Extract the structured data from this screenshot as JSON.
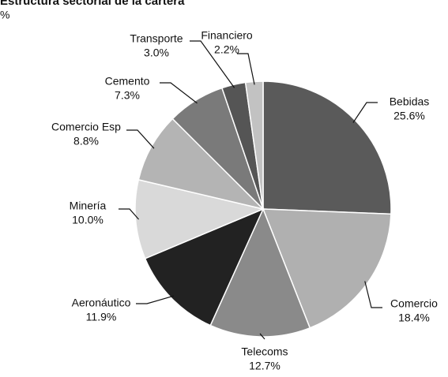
{
  "chart_data": {
    "type": "pie",
    "title": "Estructura sectorial de la cartera",
    "subtitle": "%",
    "categories": [
      "Bebidas",
      "Comercio",
      "Telecoms",
      "Aeronáutico",
      "Minería",
      "Comercio Esp",
      "Cemento",
      "Transporte",
      "Financiero"
    ],
    "values": [
      25.6,
      18.4,
      12.7,
      11.9,
      10.0,
      8.8,
      7.3,
      3.0,
      2.2
    ],
    "value_labels": [
      "25.6%",
      "18.4%",
      "12.7%",
      "11.9%",
      "10.0%",
      "8.8%",
      "7.3%",
      "3.0%",
      "2.2%"
    ],
    "colors": [
      "#5a5a5a",
      "#b0b0b0",
      "#8a8a8a",
      "#222222",
      "#d9d9d9",
      "#b4b4b4",
      "#7a7a7a",
      "#555555",
      "#c2c2c2"
    ]
  }
}
